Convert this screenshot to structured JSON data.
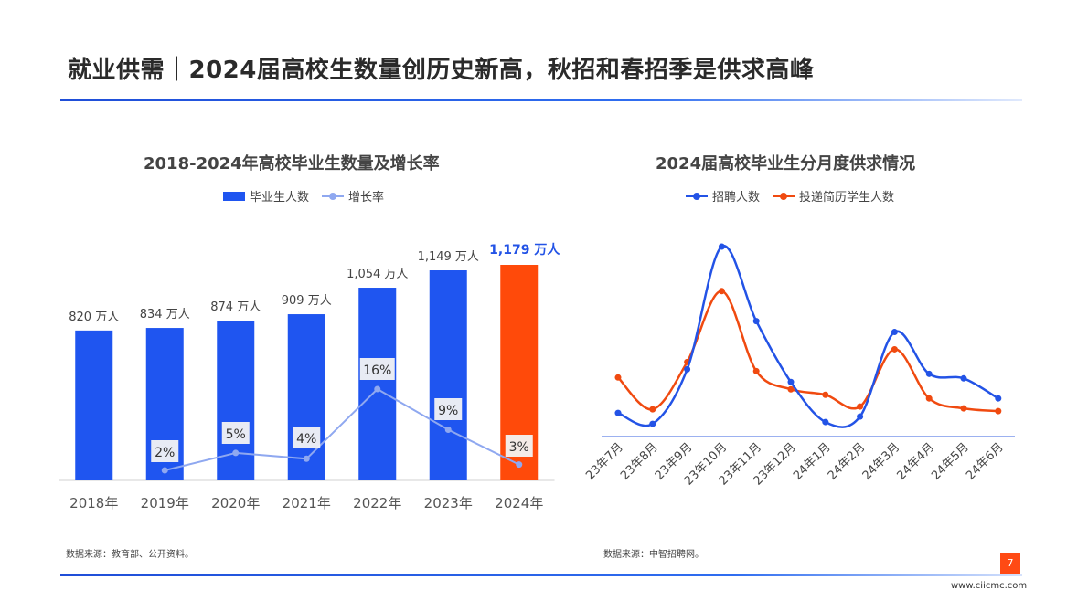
{
  "page": {
    "title": "就业供需｜2024届高校生数量创历史新高，秋招和春招季是供求高峰",
    "page_number": "7",
    "website": "www.ciicmc.com"
  },
  "colors": {
    "accent_blue": "#1f55f0",
    "highlight_orange": "#ff4a0a",
    "growth_line": "#8fa8f0",
    "recruit_line": "#2353e6",
    "resume_line": "#f04a10"
  },
  "chart_data": [
    {
      "type": "bar",
      "title": "2018-2024年高校毕业生数量及增长率",
      "categories": [
        "2018年",
        "2019年",
        "2020年",
        "2021年",
        "2022年",
        "2023年",
        "2024年"
      ],
      "series": [
        {
          "name": "毕业生人数",
          "values": [
            820,
            834,
            874,
            909,
            1054,
            1149,
            1179
          ],
          "labels": [
            "820 万人",
            "834 万人",
            "874 万人",
            "909 万人",
            "1,054 万人",
            "1,149 万人",
            "1,179 万人"
          ]
        },
        {
          "name": "增长率",
          "type": "line",
          "values": [
            null,
            2,
            5,
            4,
            16,
            9,
            3
          ],
          "labels": [
            "",
            "2%",
            "5%",
            "4%",
            "16%",
            "9%",
            "3%"
          ]
        }
      ],
      "ylim": [
        0,
        1200
      ],
      "growth_ylim": [
        0,
        35
      ],
      "legend": "top-center",
      "grid": false
    },
    {
      "type": "line",
      "title": "2024届高校毕业生分月度供求情况",
      "categories": [
        "23年7月",
        "23年8月",
        "23年9月",
        "23年10月",
        "23年11月",
        "23年12月",
        "24年1月",
        "24年2月",
        "24年3月",
        "24年4月",
        "24年5月",
        "24年6月"
      ],
      "series": [
        {
          "name": "招聘人数",
          "values": [
            26,
            14,
            74,
            209,
            127,
            60,
            16,
            22,
            115,
            69,
            64,
            42
          ]
        },
        {
          "name": "投递简历学生人数",
          "values": [
            65,
            30,
            82,
            160,
            72,
            52,
            46,
            33,
            96,
            42,
            31,
            28
          ]
        }
      ],
      "ylim": [
        0,
        230
      ],
      "yaxis_labels": false,
      "legend": "top-center",
      "grid": false
    }
  ],
  "sources": {
    "left": "数据来源：教育部、公开资料。",
    "right": "数据来源：中智招聘网。"
  }
}
